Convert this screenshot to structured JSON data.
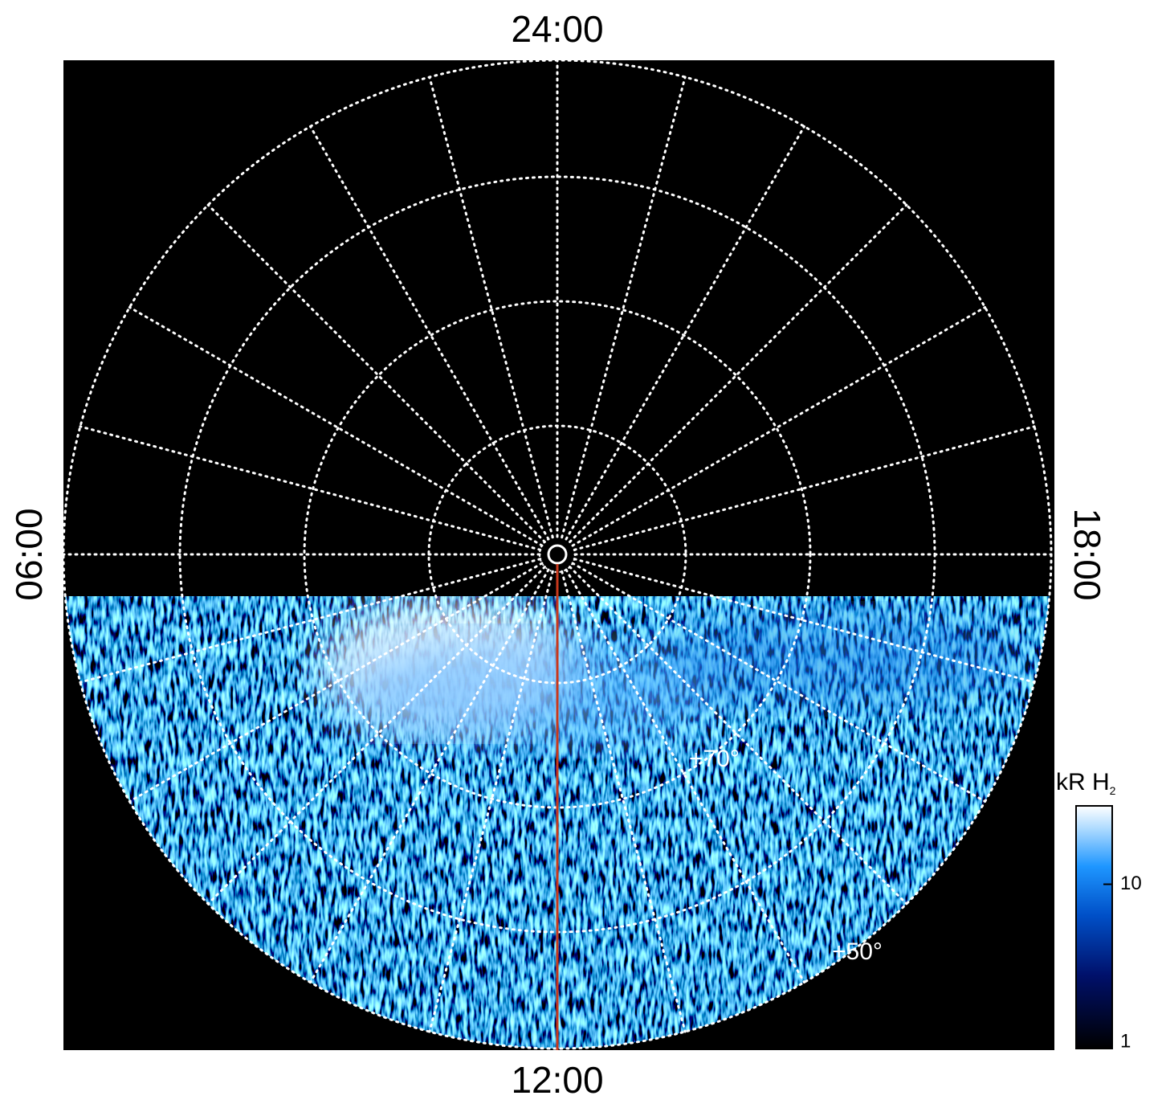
{
  "chart_data": {
    "type": "polar-image",
    "time_labels": {
      "top": "24:00",
      "bottom": "12:00",
      "left": "06:00",
      "right": "18:00"
    },
    "latitude_labels": [
      "+70°",
      "+50°"
    ],
    "colorbar": {
      "title": "kR H",
      "title_sub": "2",
      "scale": "log",
      "lim": [
        1,
        30
      ],
      "ticks": [
        1,
        10
      ]
    }
  }
}
